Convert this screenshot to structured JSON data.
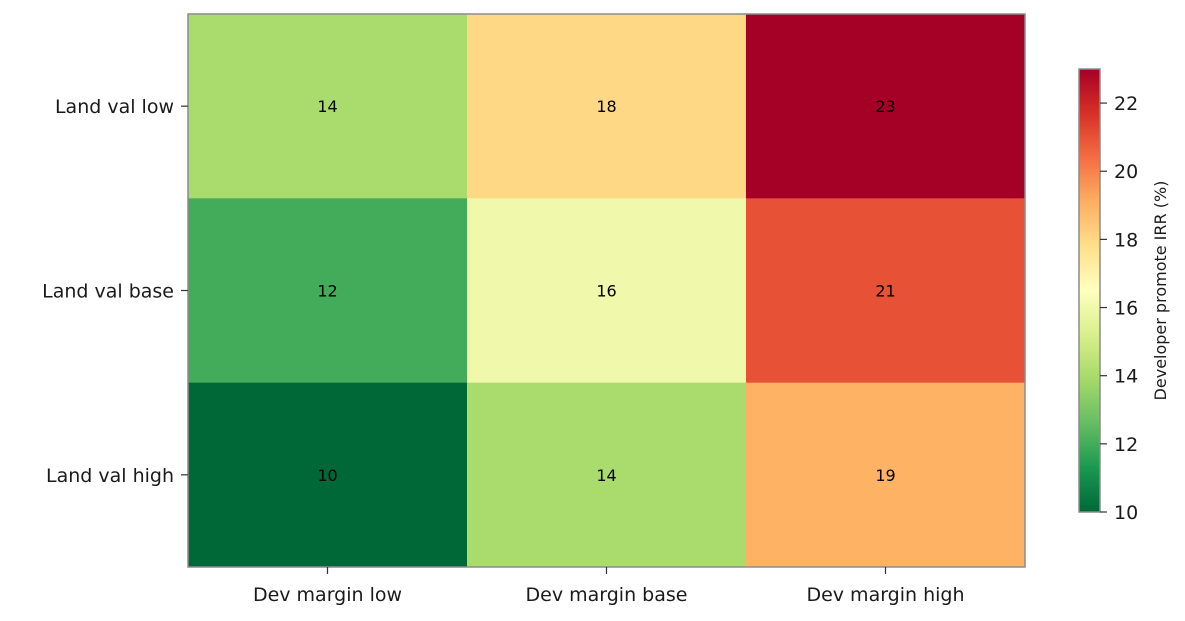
{
  "chart_data": {
    "type": "heatmap",
    "x_categories": [
      "Dev margin low",
      "Dev margin base",
      "Dev margin high"
    ],
    "y_categories": [
      "Land val low",
      "Land val base",
      "Land val high"
    ],
    "values": [
      [
        14,
        18,
        23
      ],
      [
        12,
        16,
        21
      ],
      [
        10,
        14,
        19
      ]
    ],
    "colorbar": {
      "label": "Developer promote IRR (%)",
      "vmin": 10,
      "vmax": 23,
      "ticks": [
        10,
        12,
        14,
        16,
        18,
        20,
        22
      ],
      "colormap": "RdYlGn_r"
    },
    "title": "",
    "xlabel": "",
    "ylabel": ""
  }
}
